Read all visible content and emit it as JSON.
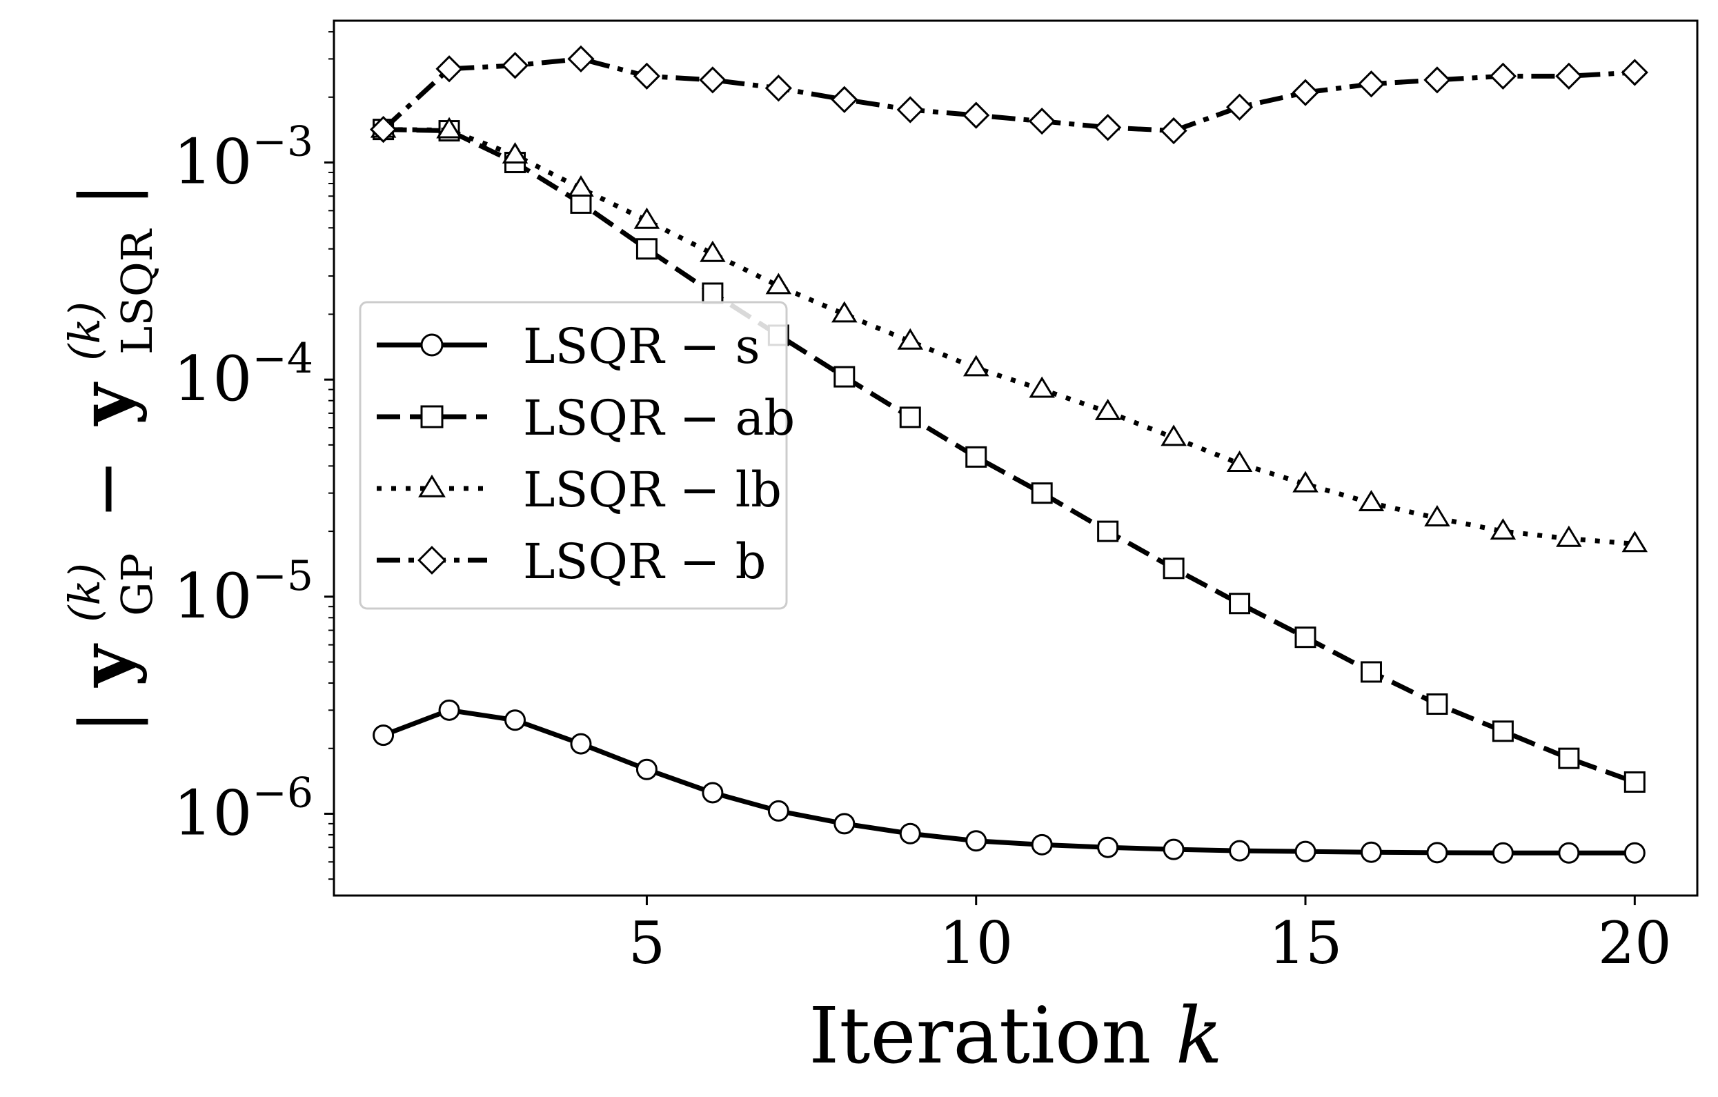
{
  "chart_data": {
    "type": "line",
    "xlabel_main": "Iteration",
    "xlabel_var": "k",
    "ylabel": {
      "open": "|",
      "y1": "y",
      "sup1": "(k)",
      "sub1": "GP",
      "minus": "−",
      "y2": "y",
      "sup2": "(k)",
      "sub2": "LSQR",
      "close": "|"
    },
    "yscale": "log",
    "xlim": [
      0.25,
      20.95
    ],
    "ylim": [
      4.2e-07,
      0.0045
    ],
    "grid": false,
    "legend_position": "center-left",
    "x_ticks": [
      5,
      10,
      15,
      20
    ],
    "x_tick_labels": [
      "5",
      "10",
      "15",
      "20"
    ],
    "y_major_ticks": [
      {
        "value": 0.001,
        "base": "10",
        "exp": "−3"
      },
      {
        "value": 0.0001,
        "base": "10",
        "exp": "−4"
      },
      {
        "value": 1e-05,
        "base": "10",
        "exp": "−5"
      },
      {
        "value": 1e-06,
        "base": "10",
        "exp": "−6"
      }
    ],
    "x": [
      1,
      2,
      3,
      4,
      5,
      6,
      7,
      8,
      9,
      10,
      11,
      12,
      13,
      14,
      15,
      16,
      17,
      18,
      19,
      20
    ],
    "series": [
      {
        "name": "LSQR − s",
        "line_style": "solid",
        "marker": "circle",
        "values": [
          2.3e-06,
          3e-06,
          2.7e-06,
          2.1e-06,
          1.6e-06,
          1.25e-06,
          1.03e-06,
          9e-07,
          8.1e-07,
          7.5e-07,
          7.2e-07,
          7e-07,
          6.85e-07,
          6.75e-07,
          6.7e-07,
          6.65e-07,
          6.62e-07,
          6.6e-07,
          6.6e-07,
          6.6e-07
        ]
      },
      {
        "name": "LSQR − ab",
        "line_style": "dashed",
        "marker": "square",
        "values": [
          0.00142,
          0.0014,
          0.001,
          0.00065,
          0.0004,
          0.00025,
          0.00016,
          0.000103,
          6.7e-05,
          4.4e-05,
          3e-05,
          2e-05,
          1.35e-05,
          9.3e-06,
          6.5e-06,
          4.5e-06,
          3.2e-06,
          2.4e-06,
          1.8e-06,
          1.4e-06
        ]
      },
      {
        "name": "LSQR − lb",
        "line_style": "dotted",
        "marker": "triangle",
        "values": [
          0.00142,
          0.00141,
          0.00108,
          0.00076,
          0.00054,
          0.00038,
          0.00027,
          0.0002,
          0.00015,
          0.000113,
          9e-05,
          7.1e-05,
          5.4e-05,
          4.1e-05,
          3.3e-05,
          2.7e-05,
          2.3e-05,
          2e-05,
          1.85e-05,
          1.75e-05
        ]
      },
      {
        "name": "LSQR − b",
        "line_style": "dashdot",
        "marker": "diamond",
        "values": [
          0.00142,
          0.0027,
          0.0028,
          0.003,
          0.0025,
          0.0024,
          0.0022,
          0.00195,
          0.00175,
          0.00165,
          0.00155,
          0.00145,
          0.0014,
          0.0018,
          0.0021,
          0.0023,
          0.0024,
          0.0025,
          0.0025,
          0.0026
        ]
      }
    ]
  }
}
